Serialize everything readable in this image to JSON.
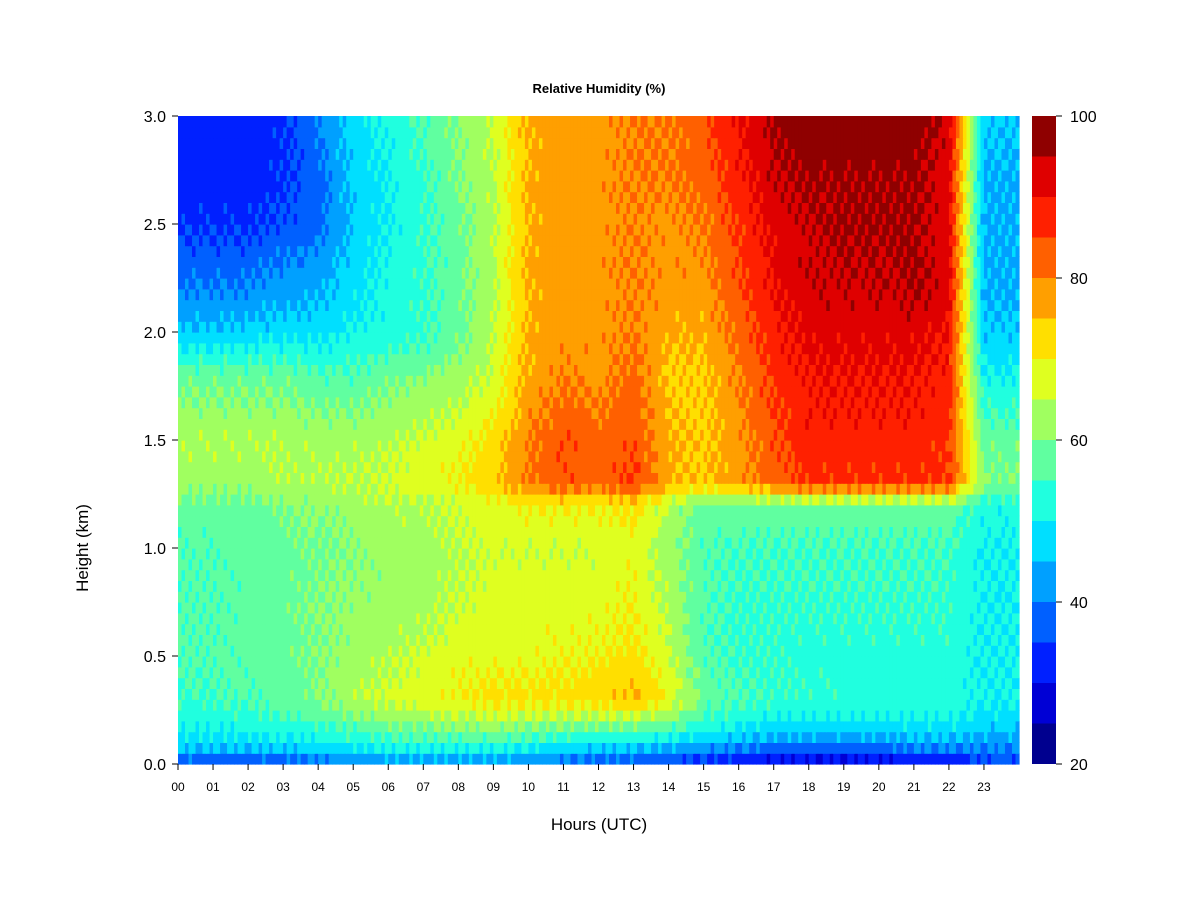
{
  "chart_data": {
    "type": "heatmap",
    "title": "Relative Humidity (%)",
    "xlabel": "Hours (UTC)",
    "ylabel": "Height (km)",
    "x_ticks": [
      "00",
      "01",
      "02",
      "03",
      "04",
      "05",
      "06",
      "07",
      "08",
      "09",
      "10",
      "11",
      "12",
      "13",
      "14",
      "15",
      "16",
      "17",
      "18",
      "19",
      "20",
      "21",
      "22",
      "23"
    ],
    "y_ticks": [
      "0.0",
      "0.5",
      "1.0",
      "1.5",
      "2.0",
      "2.5",
      "3.0"
    ],
    "xlim": [
      0,
      24
    ],
    "ylim": [
      0,
      3.0
    ],
    "colorbar": {
      "ticks": [
        "20",
        "40",
        "60",
        "80",
        "100"
      ],
      "range": [
        20,
        100
      ],
      "levels": [
        20,
        25,
        30,
        35,
        40,
        45,
        50,
        55,
        60,
        65,
        70,
        75,
        80,
        85,
        90,
        95,
        100
      ],
      "colors": [
        "#00008f",
        "#0000d5",
        "#0020ff",
        "#0060ff",
        "#00a0ff",
        "#00dfff",
        "#20ffdf",
        "#60ffa0",
        "#a0ff60",
        "#dfff20",
        "#ffdf00",
        "#ff9f00",
        "#ff6000",
        "#ff2000",
        "#df0000",
        "#8f0000"
      ]
    },
    "x_hours": [
      0,
      1,
      2,
      3,
      4,
      5,
      6,
      7,
      8,
      9,
      10,
      11,
      12,
      13,
      14,
      15,
      16,
      17,
      18,
      19,
      20,
      21,
      22,
      23,
      23.9
    ],
    "y_heights": [
      0.0,
      0.05,
      0.1,
      0.2,
      0.3,
      0.5,
      0.7,
      1.0,
      1.2,
      1.3,
      1.5,
      1.8,
      2.0,
      2.2,
      2.5,
      2.7,
      3.0
    ],
    "values": [
      [
        35,
        34,
        34,
        35,
        36,
        38,
        40,
        40,
        40,
        40,
        40,
        38,
        36,
        36,
        34,
        32,
        30,
        28,
        27,
        27,
        28,
        30,
        28,
        35,
        35
      ],
      [
        42,
        42,
        42,
        43,
        44,
        46,
        48,
        48,
        48,
        48,
        46,
        44,
        42,
        42,
        40,
        38,
        36,
        34,
        34,
        33,
        34,
        36,
        36,
        38,
        38
      ],
      [
        48,
        48,
        48,
        49,
        50,
        52,
        53,
        54,
        54,
        54,
        53,
        51,
        50,
        50,
        48,
        46,
        44,
        42,
        42,
        41,
        42,
        44,
        44,
        42,
        42
      ],
      [
        52,
        52,
        53,
        54,
        56,
        58,
        60,
        62,
        63,
        64,
        63,
        62,
        62,
        62,
        60,
        54,
        52,
        50,
        50,
        50,
        50,
        50,
        50,
        48,
        48
      ],
      [
        54,
        55,
        56,
        57,
        60,
        64,
        66,
        68,
        70,
        72,
        72,
        72,
        73,
        76,
        70,
        58,
        56,
        54,
        54,
        53,
        53,
        53,
        53,
        50,
        50
      ],
      [
        56,
        56,
        57,
        58,
        60,
        62,
        64,
        66,
        68,
        68,
        68,
        69,
        70,
        72,
        66,
        56,
        54,
        54,
        53,
        53,
        53,
        53,
        53,
        50,
        50
      ],
      [
        56,
        56,
        57,
        58,
        60,
        62,
        62,
        63,
        66,
        68,
        68,
        68,
        68,
        70,
        64,
        56,
        54,
        54,
        54,
        54,
        54,
        54,
        54,
        50,
        50
      ],
      [
        56,
        56,
        57,
        58,
        59,
        60,
        62,
        62,
        64,
        66,
        66,
        66,
        66,
        68,
        62,
        56,
        55,
        55,
        55,
        55,
        55,
        55,
        55,
        50,
        50
      ],
      [
        58,
        58,
        58,
        60,
        61,
        62,
        64,
        64,
        66,
        68,
        70,
        70,
        70,
        72,
        64,
        58,
        58,
        58,
        58,
        58,
        58,
        58,
        58,
        52,
        52
      ],
      [
        62,
        62,
        62,
        64,
        64,
        65,
        66,
        68,
        70,
        74,
        80,
        84,
        82,
        86,
        76,
        74,
        78,
        82,
        86,
        86,
        86,
        86,
        86,
        60,
        60
      ],
      [
        64,
        64,
        64,
        64,
        63,
        63,
        64,
        66,
        68,
        72,
        80,
        84,
        82,
        84,
        76,
        74,
        78,
        84,
        88,
        88,
        88,
        88,
        86,
        58,
        58
      ],
      [
        58,
        58,
        58,
        58,
        56,
        56,
        58,
        60,
        62,
        66,
        76,
        80,
        78,
        82,
        74,
        74,
        80,
        86,
        90,
        90,
        90,
        90,
        88,
        50,
        50
      ],
      [
        46,
        46,
        47,
        48,
        48,
        50,
        52,
        54,
        58,
        64,
        76,
        78,
        78,
        80,
        76,
        76,
        82,
        88,
        92,
        92,
        92,
        92,
        90,
        46,
        46
      ],
      [
        40,
        40,
        40,
        42,
        44,
        48,
        52,
        54,
        58,
        64,
        76,
        78,
        78,
        80,
        78,
        78,
        84,
        90,
        94,
        94,
        94,
        96,
        92,
        44,
        44
      ],
      [
        34,
        34,
        34,
        36,
        38,
        46,
        50,
        54,
        58,
        64,
        76,
        78,
        78,
        80,
        78,
        80,
        86,
        92,
        94,
        96,
        96,
        96,
        92,
        44,
        44
      ],
      [
        32,
        32,
        32,
        34,
        38,
        46,
        50,
        54,
        60,
        64,
        76,
        78,
        78,
        80,
        80,
        82,
        88,
        94,
        96,
        96,
        96,
        96,
        92,
        44,
        44
      ],
      [
        32,
        32,
        32,
        34,
        40,
        48,
        52,
        56,
        60,
        66,
        76,
        78,
        78,
        80,
        80,
        84,
        90,
        96,
        98,
        98,
        98,
        98,
        94,
        46,
        46
      ]
    ]
  }
}
